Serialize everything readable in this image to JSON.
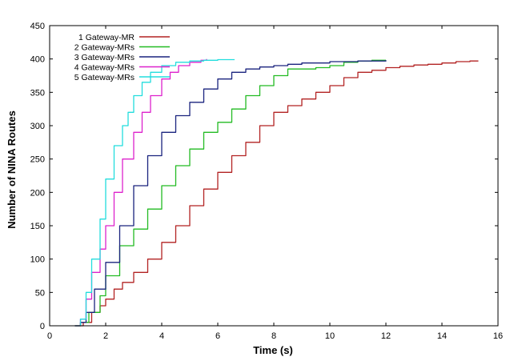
{
  "chart_data": {
    "type": "line",
    "title": "",
    "xlabel": "Time (s)",
    "ylabel": "Number of NINA Routes",
    "xlim": [
      0,
      16
    ],
    "ylim": [
      0,
      450
    ],
    "xticks": [
      0,
      2,
      4,
      6,
      8,
      10,
      12,
      14,
      16
    ],
    "yticks": [
      0,
      50,
      100,
      150,
      200,
      250,
      300,
      350,
      400,
      450
    ],
    "grid": false,
    "legend_position": "top-left",
    "series": [
      {
        "name": "1 Gateway-MR",
        "color": "#b22222",
        "x": [
          0.9,
          1.2,
          1.5,
          1.8,
          2.0,
          2.3,
          2.6,
          3.0,
          3.5,
          4.0,
          4.5,
          5.0,
          5.5,
          6.0,
          6.5,
          7.0,
          7.5,
          8.0,
          8.5,
          9.0,
          9.5,
          10.0,
          10.5,
          11.0,
          11.5,
          12.0,
          12.5,
          13.0,
          13.5,
          14.0,
          14.5,
          15.0,
          15.3
        ],
        "y": [
          0,
          5,
          20,
          30,
          40,
          55,
          65,
          80,
          100,
          125,
          150,
          180,
          205,
          230,
          255,
          275,
          300,
          320,
          330,
          340,
          350,
          360,
          372,
          380,
          383,
          387,
          389,
          391,
          392,
          394,
          396,
          397,
          397
        ]
      },
      {
        "name": "2 Gateway-MRs",
        "color": "#22bb22",
        "x": [
          0.9,
          1.1,
          1.4,
          1.8,
          2.0,
          2.5,
          3.0,
          3.5,
          4.0,
          4.5,
          5.0,
          5.5,
          6.0,
          6.5,
          7.0,
          7.5,
          8.0,
          8.5,
          9.0,
          9.5,
          10.0,
          10.5,
          11.0,
          11.5,
          12.0
        ],
        "y": [
          0,
          5,
          20,
          45,
          75,
          120,
          145,
          175,
          210,
          240,
          265,
          290,
          305,
          325,
          345,
          360,
          375,
          385,
          385,
          387,
          390,
          395,
          397,
          398,
          398
        ]
      },
      {
        "name": "3 Gateway-MRs",
        "color": "#1a237e",
        "x": [
          0.9,
          1.1,
          1.3,
          1.6,
          2.0,
          2.5,
          3.0,
          3.5,
          4.0,
          4.5,
          5.0,
          5.5,
          6.0,
          6.5,
          7.0,
          7.5,
          8.0,
          8.5,
          9.0,
          10.0,
          11.0,
          12.0
        ],
        "y": [
          0,
          5,
          20,
          55,
          95,
          150,
          210,
          255,
          290,
          315,
          335,
          355,
          370,
          380,
          385,
          388,
          390,
          392,
          394,
          396,
          397,
          398
        ]
      },
      {
        "name": "4 Gateway-MRs",
        "color": "#dd22cc",
        "x": [
          0.9,
          1.1,
          1.3,
          1.5,
          1.8,
          2.0,
          2.3,
          2.6,
          3.0,
          3.3,
          3.6,
          4.0,
          4.3,
          4.6,
          5.0,
          5.4,
          5.6
        ],
        "y": [
          0,
          10,
          40,
          80,
          115,
          150,
          200,
          250,
          290,
          320,
          345,
          370,
          380,
          390,
          395,
          398,
          400
        ]
      },
      {
        "name": "5 Gateway-MRs",
        "color": "#22dddd",
        "x": [
          0.9,
          1.1,
          1.3,
          1.5,
          1.8,
          2.0,
          2.3,
          2.6,
          2.8,
          3.0,
          3.3,
          3.6,
          4.0,
          4.5,
          5.0,
          5.5,
          6.0,
          6.5,
          6.6
        ],
        "y": [
          0,
          10,
          50,
          100,
          160,
          220,
          270,
          300,
          320,
          345,
          365,
          380,
          390,
          395,
          397,
          398,
          399,
          399,
          399
        ]
      }
    ]
  }
}
